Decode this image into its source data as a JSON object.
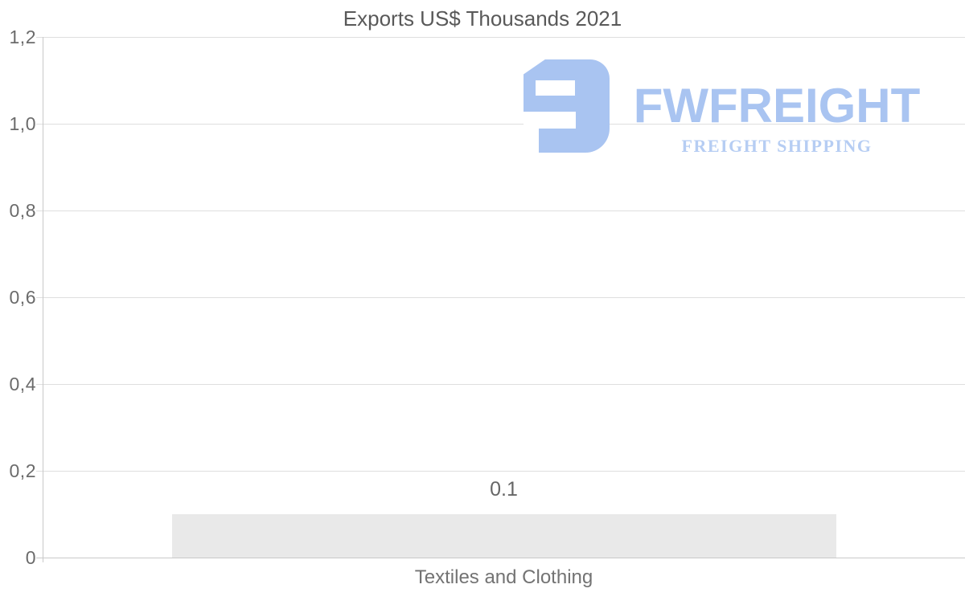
{
  "chart_data": {
    "type": "bar",
    "title": "Exports US$ Thousands 2021",
    "categories": [
      "Textiles and Clothing"
    ],
    "values": [
      0.1
    ],
    "bar_labels": [
      "0.1"
    ],
    "xlabel": "",
    "ylabel": "",
    "ylim": [
      0,
      1.2
    ],
    "y_ticks": [
      {
        "value": 1.2,
        "label": "1,2"
      },
      {
        "value": 1.0,
        "label": "1,0"
      },
      {
        "value": 0.8,
        "label": "0,8"
      },
      {
        "value": 0.6,
        "label": "0,6"
      },
      {
        "value": 0.4,
        "label": "0,4"
      },
      {
        "value": 0.2,
        "label": "0,2"
      },
      {
        "value": 0,
        "label": "0"
      }
    ],
    "grid": "horizontal",
    "legend": "none",
    "bar_color": "#e9e9e9"
  },
  "watermark": {
    "brand": "FWFREIGHT",
    "tagline": "FREIGHT SHIPPING",
    "brand_color": "#a9c4f1",
    "tagline_color": "#b6cdf3",
    "icon": "fwfreight-logo-icon"
  },
  "colors": {
    "background": "#ffffff",
    "title_text": "#595959",
    "axis_text": "#6b6b6b",
    "axis_line": "#c9c9c9",
    "gridline": "#dedede",
    "bar_fill": "#e9e9e9",
    "bar_label_text": "#666666",
    "category_text": "#737373"
  }
}
